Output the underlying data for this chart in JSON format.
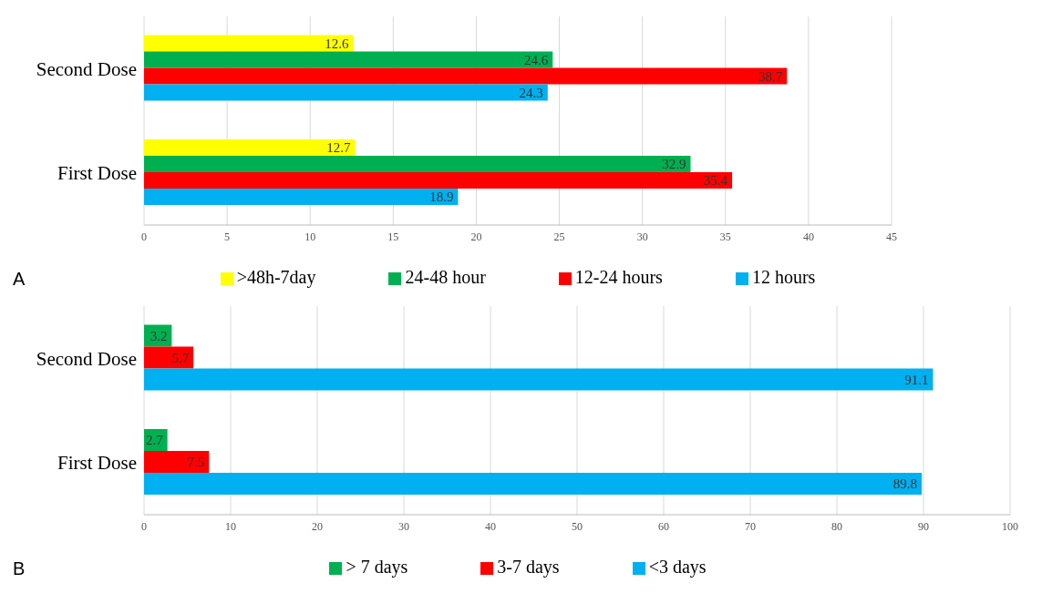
{
  "chart_data": [
    {
      "type": "bar",
      "orientation": "horizontal",
      "categories": [
        "Second Dose",
        "First Dose"
      ],
      "series": [
        {
          "name": ">48h-7day",
          "color": "#ffff00",
          "values": [
            12.6,
            12.7
          ]
        },
        {
          "name": "24-48 hour",
          "color": "#00b050",
          "values": [
            24.6,
            32.9
          ]
        },
        {
          "name": "12-24 hours",
          "color": "#ff0000",
          "values": [
            38.7,
            35.4
          ]
        },
        {
          "name": "12 hours",
          "color": "#00b0f0",
          "values": [
            24.3,
            18.9
          ]
        }
      ],
      "xlim": [
        0,
        45
      ],
      "xticks": [
        0,
        5,
        10,
        15,
        20,
        25,
        30,
        35,
        40,
        45
      ],
      "grid": "x",
      "legend": "bottom",
      "data_labels": true,
      "annotations": [
        "A"
      ]
    },
    {
      "type": "bar",
      "orientation": "horizontal",
      "categories": [
        "Second Dose",
        "First Dose"
      ],
      "series": [
        {
          "name": "> 7 days",
          "color": "#00b050",
          "values": [
            3.2,
            2.7
          ]
        },
        {
          "name": "3-7 days",
          "color": "#ff0000",
          "values": [
            5.7,
            7.5
          ]
        },
        {
          "name": "<3 days",
          "color": "#00b0f0",
          "values": [
            91.1,
            89.8
          ]
        }
      ],
      "xlim": [
        0,
        100
      ],
      "xticks": [
        0,
        10,
        20,
        30,
        40,
        50,
        60,
        70,
        80,
        90,
        100
      ],
      "grid": "x",
      "legend": "bottom",
      "data_labels": true,
      "annotations": [
        "B"
      ]
    }
  ]
}
